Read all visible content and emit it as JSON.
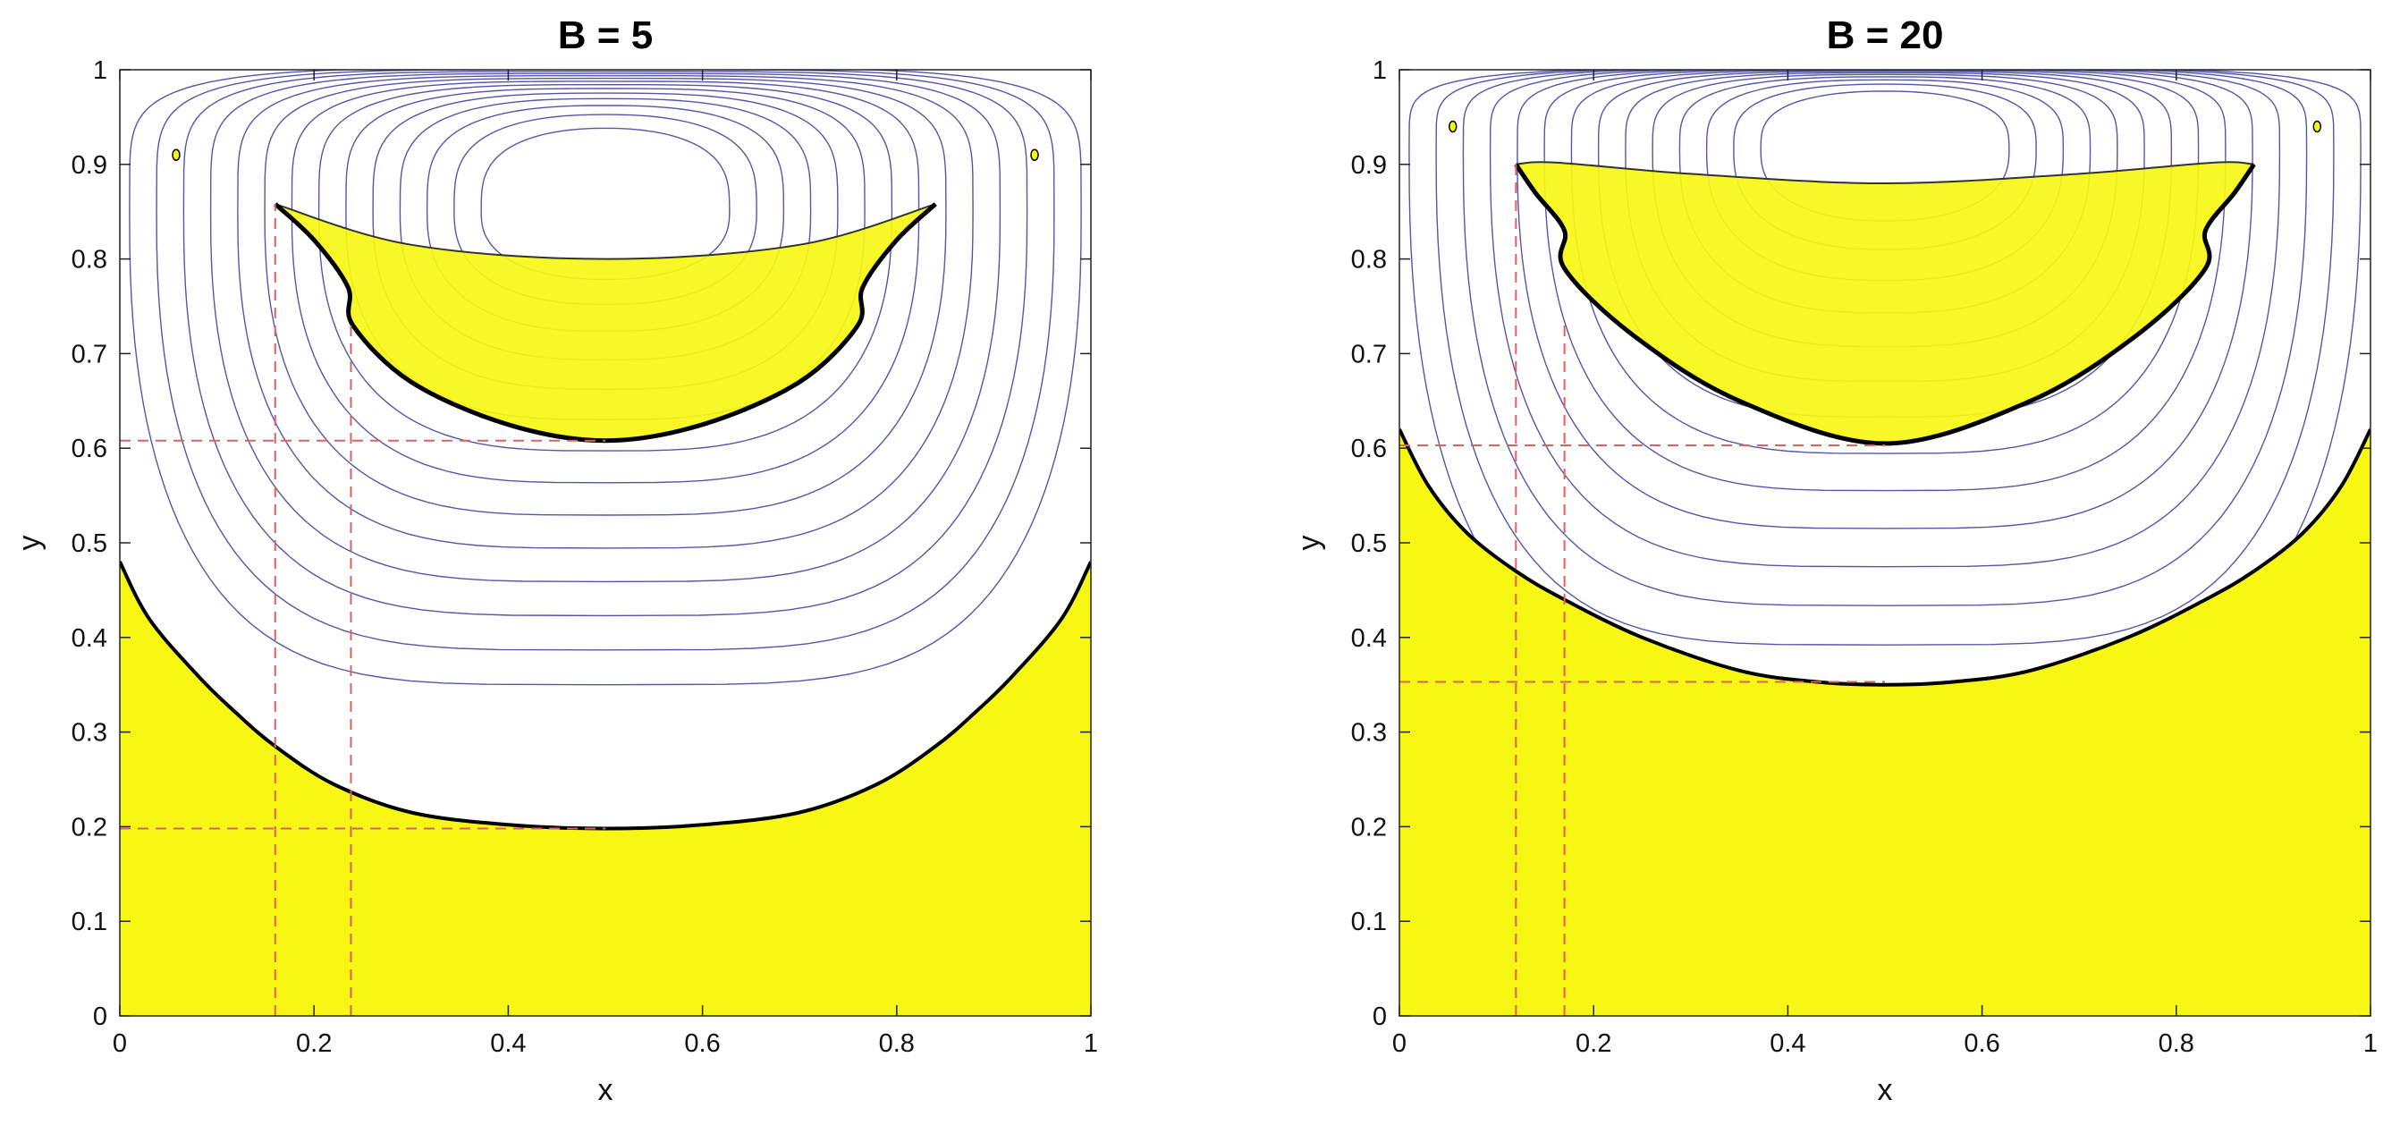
{
  "chart_data": [
    {
      "type": "contour",
      "title": "B = 5",
      "xlabel": "x",
      "ylabel": "y",
      "xlim": [
        0,
        1
      ],
      "ylim": [
        0,
        1
      ],
      "xticks": [
        "0",
        "0.2",
        "0.4",
        "0.6",
        "0.8",
        "1"
      ],
      "yticks": [
        "0",
        "0.1",
        "0.2",
        "0.3",
        "0.4",
        "0.5",
        "0.6",
        "0.7",
        "0.8",
        "0.9",
        "1"
      ],
      "grid": false,
      "colors": {
        "yielded_region": "#f7f713",
        "streamlines": "#5555aa",
        "boundary": "#000000",
        "guides": "#e06060"
      },
      "streamline_levels": {
        "count": 14,
        "vortex_center": [
          0.5,
          0.85
        ]
      },
      "plug_region_top": {
        "upper_edge": [
          [
            0.16,
            0.858
          ],
          [
            0.3,
            0.815
          ],
          [
            0.5,
            0.8
          ],
          [
            0.7,
            0.815
          ],
          [
            0.84,
            0.858
          ]
        ],
        "lower_edge": [
          [
            0.84,
            0.858
          ],
          [
            0.8,
            0.82
          ],
          [
            0.765,
            0.77
          ],
          [
            0.76,
            0.73
          ],
          [
            0.7,
            0.67
          ],
          [
            0.6,
            0.625
          ],
          [
            0.5,
            0.608
          ],
          [
            0.4,
            0.625
          ],
          [
            0.3,
            0.67
          ],
          [
            0.24,
            0.73
          ],
          [
            0.235,
            0.77
          ],
          [
            0.2,
            0.82
          ],
          [
            0.16,
            0.858
          ]
        ]
      },
      "plug_region_bottom": {
        "boundary": [
          [
            0,
            0.48
          ],
          [
            0.03,
            0.42
          ],
          [
            0.08,
            0.36
          ],
          [
            0.12,
            0.32
          ],
          [
            0.16,
            0.285
          ],
          [
            0.22,
            0.245
          ],
          [
            0.3,
            0.215
          ],
          [
            0.4,
            0.202
          ],
          [
            0.5,
            0.198
          ],
          [
            0.6,
            0.202
          ],
          [
            0.7,
            0.215
          ],
          [
            0.78,
            0.245
          ],
          [
            0.84,
            0.285
          ],
          [
            0.88,
            0.32
          ],
          [
            0.92,
            0.36
          ],
          [
            0.97,
            0.42
          ],
          [
            1,
            0.48
          ]
        ]
      },
      "guide_lines": {
        "horizontal_y": [
          0.608,
          0.198
        ],
        "vertical_x": [
          0.16,
          0.238
        ]
      },
      "small_islands": [
        [
          0.058,
          0.91
        ],
        [
          0.942,
          0.91
        ]
      ]
    },
    {
      "type": "contour",
      "title": "B = 20",
      "xlabel": "x",
      "ylabel": "y",
      "xlim": [
        0,
        1
      ],
      "ylim": [
        0,
        1
      ],
      "xticks": [
        "0",
        "0.2",
        "0.4",
        "0.6",
        "0.8",
        "1"
      ],
      "yticks": [
        "0",
        "0.1",
        "0.2",
        "0.3",
        "0.4",
        "0.5",
        "0.6",
        "0.7",
        "0.8",
        "0.9",
        "1"
      ],
      "grid": false,
      "colors": {
        "yielded_region": "#f7f713",
        "streamlines": "#5555aa",
        "boundary": "#000000",
        "guides": "#e06060"
      },
      "streamline_levels": {
        "count": 14,
        "vortex_center": [
          0.5,
          0.915
        ]
      },
      "plug_region_top": {
        "upper_edge": [
          [
            0.12,
            0.9
          ],
          [
            0.16,
            0.902
          ],
          [
            0.3,
            0.89
          ],
          [
            0.5,
            0.88
          ],
          [
            0.7,
            0.89
          ],
          [
            0.84,
            0.902
          ],
          [
            0.88,
            0.9
          ]
        ],
        "lower_edge": [
          [
            0.88,
            0.9
          ],
          [
            0.86,
            0.87
          ],
          [
            0.83,
            0.83
          ],
          [
            0.83,
            0.79
          ],
          [
            0.76,
            0.72
          ],
          [
            0.65,
            0.65
          ],
          [
            0.5,
            0.605
          ],
          [
            0.35,
            0.65
          ],
          [
            0.24,
            0.72
          ],
          [
            0.17,
            0.79
          ],
          [
            0.17,
            0.83
          ],
          [
            0.14,
            0.87
          ],
          [
            0.12,
            0.9
          ]
        ]
      },
      "plug_region_bottom": {
        "boundary": [
          [
            0,
            0.62
          ],
          [
            0.03,
            0.56
          ],
          [
            0.07,
            0.51
          ],
          [
            0.12,
            0.47
          ],
          [
            0.17,
            0.44
          ],
          [
            0.25,
            0.4
          ],
          [
            0.35,
            0.365
          ],
          [
            0.43,
            0.353
          ],
          [
            0.5,
            0.35
          ],
          [
            0.57,
            0.353
          ],
          [
            0.65,
            0.365
          ],
          [
            0.75,
            0.4
          ],
          [
            0.83,
            0.44
          ],
          [
            0.88,
            0.47
          ],
          [
            0.93,
            0.51
          ],
          [
            0.97,
            0.56
          ],
          [
            1,
            0.62
          ]
        ]
      },
      "guide_lines": {
        "horizontal_y": [
          0.603,
          0.353
        ],
        "vertical_x": [
          0.12,
          0.17
        ]
      },
      "small_islands": [
        [
          0.055,
          0.94
        ],
        [
          0.945,
          0.94
        ]
      ]
    }
  ]
}
